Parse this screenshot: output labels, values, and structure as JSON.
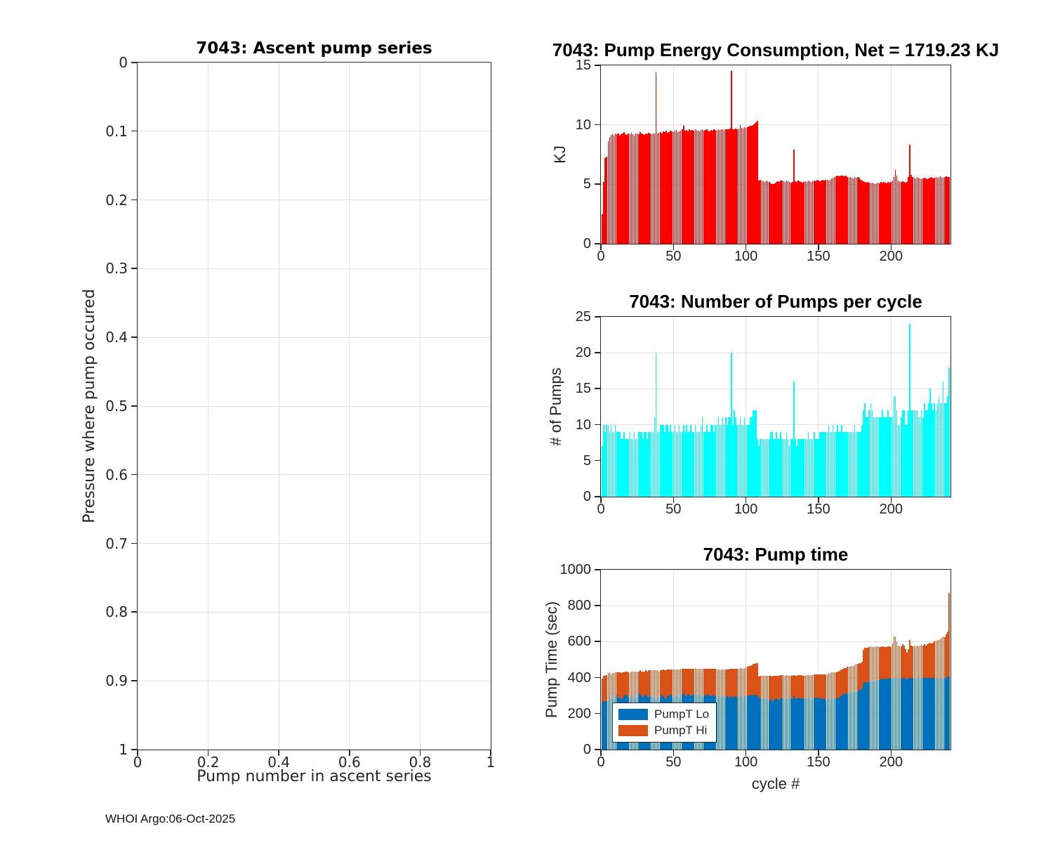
{
  "footer": {
    "text": "WHOI Argo:06-Oct-2025"
  },
  "colors": {
    "grid": "#e0e0e0",
    "axis": "#262626",
    "red": "#ff0000",
    "cyan": "#00ffff",
    "blue": "#0072bd",
    "orange": "#d95319"
  },
  "chart_data": [
    {
      "type": "scatter",
      "title": "7043: Ascent pump series",
      "xlabel": "Pump number in ascent series",
      "ylabel": "Pressure where pump occured",
      "xlim": [
        0,
        1
      ],
      "ylim": [
        0,
        1
      ],
      "y_reversed": true,
      "xticks": [
        0,
        0.2,
        0.4,
        0.6,
        0.8,
        1
      ],
      "yticks": [
        0,
        0.1,
        0.2,
        0.3,
        0.4,
        0.5,
        0.6,
        0.7,
        0.8,
        0.9,
        1
      ],
      "grid": true,
      "points": []
    },
    {
      "type": "bar",
      "title": "7043: Pump Energy Consumption,  Net = 1719.23 KJ",
      "ylabel": "KJ",
      "color": "#ff0000",
      "xlim": [
        0,
        241
      ],
      "ylim": [
        0,
        15
      ],
      "xticks": [
        0,
        50,
        100,
        150,
        200
      ],
      "yticks": [
        0,
        5,
        10,
        15
      ],
      "grid": true,
      "values": [
        2.5,
        5.2,
        7.2,
        7.3,
        8.6,
        9.0,
        9.15,
        9.2,
        9.1,
        9.25,
        9.2,
        9.3,
        9.1,
        9.2,
        9.3,
        9.4,
        9.2,
        9.15,
        9.3,
        9.2,
        9.35,
        9.2,
        9.1,
        9.3,
        9.25,
        9.2,
        9.4,
        9.3,
        9.2,
        9.15,
        9.3,
        9.2,
        9.35,
        9.3,
        9.2,
        9.25,
        9.3,
        14.4,
        9.3,
        9.35,
        9.4,
        9.3,
        9.45,
        9.4,
        9.5,
        9.35,
        9.4,
        9.5,
        9.45,
        9.4,
        9.5,
        9.55,
        9.4,
        9.45,
        9.5,
        9.6,
        9.9,
        9.5,
        9.55,
        9.45,
        9.6,
        9.5,
        9.55,
        9.5,
        9.6,
        9.55,
        9.5,
        9.45,
        9.55,
        9.6,
        9.5,
        9.55,
        9.6,
        9.5,
        9.45,
        9.55,
        9.5,
        9.6,
        9.55,
        9.5,
        9.6,
        9.55,
        9.65,
        9.6,
        9.55,
        9.6,
        9.65,
        9.6,
        9.7,
        14.5,
        9.6,
        9.65,
        9.7,
        9.6,
        9.7,
        10.0,
        9.75,
        9.7,
        9.8,
        9.75,
        9.8,
        9.85,
        9.9,
        9.95,
        10.0,
        10.1,
        10.2,
        10.35,
        5.3,
        5.4,
        5.3,
        5.25,
        5.2,
        5.3,
        5.25,
        5.2,
        5.1,
        5.0,
        5.05,
        5.1,
        5.2,
        5.25,
        5.2,
        5.3,
        5.3,
        5.25,
        5.2,
        5.3,
        5.25,
        5.2,
        5.15,
        5.2,
        7.9,
        5.25,
        5.2,
        5.3,
        5.25,
        5.2,
        5.15,
        5.2,
        5.25,
        5.2,
        5.3,
        5.25,
        5.2,
        5.25,
        5.3,
        5.25,
        5.35,
        5.3,
        5.25,
        5.3,
        5.35,
        5.3,
        5.4,
        5.35,
        5.3,
        5.4,
        5.5,
        5.55,
        5.6,
        5.65,
        5.7,
        5.65,
        5.7,
        5.75,
        5.7,
        5.65,
        5.7,
        5.6,
        5.55,
        5.6,
        5.55,
        5.5,
        5.6,
        5.55,
        5.6,
        5.55,
        5.4,
        5.3,
        5.25,
        5.2,
        5.15,
        5.2,
        5.15,
        5.1,
        5.15,
        5.1,
        5.05,
        5.1,
        5.15,
        5.1,
        5.2,
        5.15,
        5.2,
        5.15,
        5.1,
        5.2,
        5.15,
        5.2,
        5.3,
        5.6,
        6.2,
        5.7,
        5.3,
        5.25,
        5.2,
        5.25,
        5.2,
        5.15,
        5.2,
        5.6,
        8.3,
        5.8,
        5.6,
        5.55,
        5.5,
        5.6,
        5.55,
        5.5,
        5.45,
        5.5,
        5.55,
        5.5,
        5.45,
        5.5,
        5.55,
        5.6,
        5.5,
        5.55,
        5.6,
        5.55,
        5.6,
        5.65,
        5.6,
        5.55,
        5.6,
        5.65,
        5.6,
        5.6
      ]
    },
    {
      "type": "bar",
      "title": "7043: Number of Pumps per cycle",
      "ylabel": "# of Pumps",
      "color": "#00ffff",
      "xlim": [
        0,
        241
      ],
      "ylim": [
        0,
        25
      ],
      "xticks": [
        0,
        50,
        100,
        150,
        200
      ],
      "yticks": [
        0,
        5,
        10,
        15,
        20,
        25
      ],
      "grid": true,
      "values": [
        7,
        10,
        9,
        10,
        10,
        9,
        10,
        9,
        9,
        10,
        9,
        9,
        9,
        8,
        8,
        9,
        8,
        8,
        8,
        9,
        8,
        8,
        9,
        8,
        8,
        9,
        9,
        9,
        8,
        9,
        9,
        8,
        9,
        9,
        9,
        9,
        11,
        20,
        9,
        9,
        10,
        10,
        10,
        9,
        10,
        10,
        9,
        10,
        9,
        9,
        10,
        9,
        9,
        10,
        9,
        9,
        10,
        9,
        10,
        9,
        9,
        10,
        9,
        9,
        10,
        9,
        9,
        9,
        10,
        11,
        9,
        9,
        10,
        9,
        9,
        10,
        10,
        9,
        10,
        10,
        11,
        10,
        10,
        11,
        10,
        11,
        10,
        11,
        11,
        20,
        10,
        12,
        11,
        10,
        10,
        11,
        10,
        10,
        11,
        10,
        10,
        10,
        11,
        11,
        12,
        12,
        12,
        8,
        7,
        8,
        8,
        8,
        8,
        8,
        8,
        8,
        9,
        9,
        8,
        8,
        9,
        8,
        8,
        9,
        8,
        8,
        8,
        9,
        8,
        7,
        8,
        8,
        16,
        8,
        7,
        8,
        8,
        8,
        8,
        8,
        8,
        8,
        9,
        8,
        8,
        8,
        9,
        8,
        8,
        8,
        9,
        9,
        9,
        9,
        9,
        9,
        10,
        9,
        9,
        10,
        9,
        9,
        10,
        9,
        9,
        10,
        9,
        9,
        9,
        9,
        9,
        9,
        9,
        9,
        10,
        9,
        9,
        9,
        9,
        10,
        12,
        13,
        11,
        11,
        12,
        13,
        12,
        11,
        11,
        11,
        11,
        11,
        11,
        12,
        11,
        11,
        11,
        12,
        11,
        11,
        11,
        14,
        14,
        12,
        10,
        10,
        11,
        12,
        12,
        10,
        10,
        12,
        24,
        12,
        12,
        12,
        12,
        12,
        11,
        11,
        12,
        11,
        13,
        12,
        12,
        13,
        15,
        13,
        12,
        13,
        12,
        13,
        14,
        13,
        13,
        16,
        13,
        13,
        14,
        18
      ]
    },
    {
      "type": "stacked-bar",
      "title": "7043: Pump time",
      "ylabel": "Pump Time (sec)",
      "xlabel": "cycle #",
      "xlim": [
        0,
        241
      ],
      "ylim": [
        0,
        1000
      ],
      "xticks": [
        0,
        50,
        100,
        150,
        200
      ],
      "yticks": [
        0,
        200,
        400,
        600,
        800,
        1000
      ],
      "grid": true,
      "legend_position": "lower-left",
      "series": [
        {
          "name": "PumpT Lo",
          "color": "#0072bd",
          "values": [
            265,
            270,
            265,
            270,
            275,
            300,
            280,
            285,
            280,
            300,
            305,
            290,
            285,
            280,
            285,
            300,
            305,
            300,
            285,
            290,
            310,
            305,
            290,
            285,
            290,
            315,
            310,
            295,
            290,
            300,
            310,
            295,
            290,
            295,
            300,
            290,
            295,
            285,
            290,
            280,
            300,
            305,
            295,
            285,
            280,
            295,
            300,
            310,
            295,
            290,
            300,
            305,
            295,
            290,
            300,
            310,
            315,
            300,
            295,
            310,
            305,
            295,
            300,
            310,
            315,
            300,
            295,
            305,
            310,
            300,
            295,
            305,
            300,
            310,
            295,
            300,
            305,
            295,
            300,
            290,
            295,
            300,
            290,
            295,
            300,
            290,
            295,
            290,
            295,
            290,
            295,
            290,
            295,
            290,
            295,
            300,
            295,
            290,
            295,
            300,
            295,
            300,
            305,
            300,
            305,
            300,
            305,
            300,
            285,
            290,
            285,
            280,
            285,
            290,
            280,
            275,
            280,
            270,
            275,
            280,
            285,
            280,
            275,
            285,
            290,
            285,
            280,
            290,
            285,
            280,
            285,
            280,
            300,
            285,
            280,
            285,
            290,
            285,
            280,
            285,
            290,
            285,
            290,
            285,
            280,
            285,
            290,
            285,
            290,
            285,
            290,
            285,
            280,
            285,
            275,
            280,
            285,
            280,
            285,
            290,
            285,
            280,
            290,
            285,
            295,
            300,
            310,
            305,
            315,
            310,
            320,
            315,
            320,
            325,
            320,
            330,
            325,
            335,
            330,
            340,
            370,
            375,
            370,
            375,
            380,
            385,
            380,
            385,
            380,
            385,
            390,
            385,
            390,
            395,
            390,
            395,
            390,
            395,
            400,
            395,
            400,
            400,
            395,
            400,
            395,
            400,
            395,
            400,
            400,
            395,
            390,
            395,
            400,
            400,
            400,
            400,
            400,
            400,
            400,
            400,
            400,
            400,
            400,
            400,
            400,
            400,
            400,
            400,
            400,
            400,
            400,
            400,
            395,
            400,
            400,
            395,
            400,
            400,
            405,
            405
          ]
        },
        {
          "name": "PumpT Hi",
          "color": "#d95319",
          "values": [
            130,
            140,
            145,
            145,
            150,
            130,
            140,
            140,
            145,
            130,
            125,
            140,
            145,
            145,
            145,
            130,
            130,
            135,
            145,
            140,
            125,
            130,
            145,
            150,
            145,
            120,
            130,
            140,
            145,
            135,
            130,
            140,
            150,
            145,
            140,
            150,
            145,
            155,
            150,
            155,
            140,
            135,
            150,
            155,
            160,
            150,
            145,
            135,
            150,
            155,
            145,
            140,
            150,
            155,
            150,
            140,
            135,
            150,
            155,
            140,
            145,
            155,
            150,
            140,
            140,
            150,
            155,
            145,
            140,
            150,
            155,
            145,
            150,
            140,
            155,
            150,
            145,
            155,
            150,
            155,
            150,
            145,
            155,
            150,
            145,
            155,
            150,
            155,
            155,
            160,
            155,
            160,
            155,
            160,
            155,
            155,
            160,
            160,
            160,
            160,
            165,
            165,
            160,
            170,
            170,
            175,
            175,
            180,
            120,
            120,
            125,
            130,
            125,
            120,
            130,
            135,
            130,
            135,
            135,
            130,
            125,
            130,
            135,
            130,
            125,
            130,
            130,
            125,
            130,
            130,
            125,
            130,
            115,
            125,
            130,
            130,
            125,
            130,
            130,
            125,
            125,
            130,
            125,
            130,
            135,
            130,
            130,
            135,
            130,
            135,
            130,
            135,
            140,
            135,
            145,
            140,
            140,
            145,
            145,
            140,
            145,
            150,
            145,
            150,
            145,
            145,
            140,
            150,
            140,
            150,
            140,
            145,
            145,
            140,
            150,
            145,
            150,
            145,
            150,
            150,
            185,
            190,
            195,
            190,
            190,
            190,
            190,
            185,
            190,
            190,
            185,
            185,
            180,
            180,
            180,
            175,
            180,
            180,
            175,
            175,
            190,
            230,
            235,
            200,
            185,
            175,
            180,
            185,
            180,
            165,
            150,
            165,
            210,
            180,
            175,
            180,
            175,
            180,
            175,
            180,
            185,
            180,
            185,
            180,
            185,
            190,
            195,
            190,
            195,
            200,
            205,
            210,
            215,
            215,
            220,
            235,
            225,
            240,
            250,
            465
          ]
        }
      ]
    }
  ]
}
